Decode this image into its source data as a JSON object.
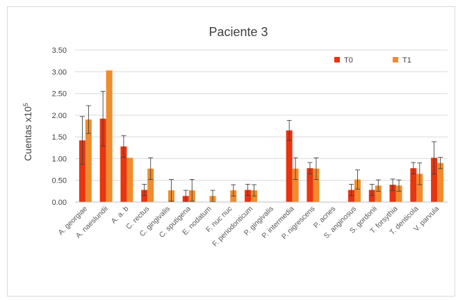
{
  "chart_data": {
    "type": "bar",
    "title": "Paciente 3",
    "ylabel": "Cuentas x10",
    "ylabel_superscript": "5",
    "xlabel": "",
    "ylim": [
      0,
      3.5
    ],
    "yticks": [
      "0.00",
      "0.50",
      "1.00",
      "1.50",
      "2.00",
      "2.50",
      "3.00",
      "3.50"
    ],
    "grid": true,
    "legend_position": "top-right",
    "categories": [
      "A. georgiae",
      "A. naeslundii",
      "A. a. b",
      "C. rectus",
      "C. gingivalis",
      "C. sputigena",
      "E. nodatum",
      "F. nuc nuc",
      "F. periodonticum",
      "P. gingivalis",
      "P. intermedia",
      "P. nigrescens",
      "P. acnes",
      "S. anginosus",
      "S. gordonii",
      "T. forsythia",
      "T. denticola",
      "V. parvula"
    ],
    "series": [
      {
        "name": "T0",
        "color": "#e8340f",
        "values": [
          1.42,
          1.92,
          1.28,
          0.28,
          0,
          0.14,
          0,
          0,
          0.28,
          0,
          1.65,
          0.78,
          0,
          0.28,
          0.28,
          0.4,
          0.78,
          1.02
        ],
        "error": [
          0.55,
          0.63,
          0.25,
          0.13,
          0,
          0.13,
          0,
          0,
          0.13,
          0,
          0.23,
          0.13,
          0,
          0.13,
          0.13,
          0.13,
          0.13,
          0.37
        ]
      },
      {
        "name": "T1",
        "color": "#f08c2e",
        "values": [
          1.9,
          3.03,
          1.02,
          0.77,
          0.27,
          0.27,
          0.14,
          0.27,
          0.27,
          0,
          0.77,
          0.77,
          0,
          0.52,
          0.38,
          0.38,
          0.65,
          0.9
        ],
        "error": [
          0.32,
          0,
          0,
          0.25,
          0.25,
          0.25,
          0.13,
          0.13,
          0.13,
          0,
          0.25,
          0.25,
          0,
          0.22,
          0.13,
          0.13,
          0.25,
          0.13
        ]
      }
    ]
  }
}
